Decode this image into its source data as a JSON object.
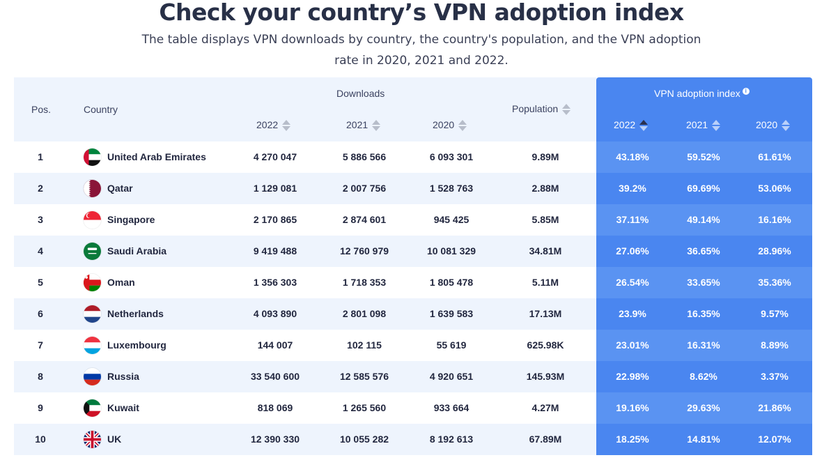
{
  "title": "Check your country’s VPN adoption index",
  "subtitle": "The table displays VPN downloads by country, the country's population, and the VPN adoption rate in 2020, 2021 and 2022.",
  "table": {
    "headers": {
      "pos": "Pos.",
      "country": "Country",
      "downloads": "Downloads",
      "downloads_years": [
        "2022",
        "2021",
        "2020"
      ],
      "population": "Population",
      "vpn_index": "VPN adoption index",
      "vpn_years": [
        "2022",
        "2021",
        "2020"
      ]
    },
    "colors": {
      "header_bg": "#eef4fd",
      "vpn_header_bg": "#4a86f0",
      "vpn_odd": "#5a93f2",
      "vpn_even": "#4a86f0"
    },
    "rows": [
      {
        "pos": "1",
        "country": "United Arab Emirates",
        "flag": "uae-flag-icon",
        "d2022": "4 270 047",
        "d2021": "5 886 566",
        "d2020": "6 093 301",
        "population": "9.89M",
        "v2022": "43.18%",
        "v2021": "59.52%",
        "v2020": "61.61%"
      },
      {
        "pos": "2",
        "country": "Qatar",
        "flag": "qatar-flag-icon",
        "d2022": "1 129 081",
        "d2021": "2 007 756",
        "d2020": "1 528 763",
        "population": "2.88M",
        "v2022": "39.2%",
        "v2021": "69.69%",
        "v2020": "53.06%"
      },
      {
        "pos": "3",
        "country": "Singapore",
        "flag": "singapore-flag-icon",
        "d2022": "2 170 865",
        "d2021": "2 874 601",
        "d2020": "945 425",
        "population": "5.85M",
        "v2022": "37.11%",
        "v2021": "49.14%",
        "v2020": "16.16%"
      },
      {
        "pos": "4",
        "country": "Saudi Arabia",
        "flag": "saudi-flag-icon",
        "d2022": "9 419 488",
        "d2021": "12 760 979",
        "d2020": "10 081 329",
        "population": "34.81M",
        "v2022": "27.06%",
        "v2021": "36.65%",
        "v2020": "28.96%"
      },
      {
        "pos": "5",
        "country": "Oman",
        "flag": "oman-flag-icon",
        "d2022": "1 356 303",
        "d2021": "1 718 353",
        "d2020": "1 805 478",
        "population": "5.11M",
        "v2022": "26.54%",
        "v2021": "33.65%",
        "v2020": "35.36%"
      },
      {
        "pos": "6",
        "country": "Netherlands",
        "flag": "netherlands-flag-icon",
        "d2022": "4 093 890",
        "d2021": "2 801 098",
        "d2020": "1 639 583",
        "population": "17.13M",
        "v2022": "23.9%",
        "v2021": "16.35%",
        "v2020": "9.57%"
      },
      {
        "pos": "7",
        "country": "Luxembourg",
        "flag": "luxembourg-flag-icon",
        "d2022": "144 007",
        "d2021": "102 115",
        "d2020": "55 619",
        "population": "625.98K",
        "v2022": "23.01%",
        "v2021": "16.31%",
        "v2020": "8.89%"
      },
      {
        "pos": "8",
        "country": "Russia",
        "flag": "russia-flag-icon",
        "d2022": "33 540 600",
        "d2021": "12 585 576",
        "d2020": "4 920 651",
        "population": "145.93M",
        "v2022": "22.98%",
        "v2021": "8.62%",
        "v2020": "3.37%"
      },
      {
        "pos": "9",
        "country": "Kuwait",
        "flag": "kuwait-flag-icon",
        "d2022": "818 069",
        "d2021": "1 265 560",
        "d2020": "933 664",
        "population": "4.27M",
        "v2022": "19.16%",
        "v2021": "29.63%",
        "v2020": "21.86%"
      },
      {
        "pos": "10",
        "country": "UK",
        "flag": "uk-flag-icon",
        "d2022": "12 390 330",
        "d2021": "10 055 282",
        "d2020": "8 192 613",
        "population": "67.89M",
        "v2022": "18.25%",
        "v2021": "14.81%",
        "v2020": "12.07%"
      }
    ]
  }
}
